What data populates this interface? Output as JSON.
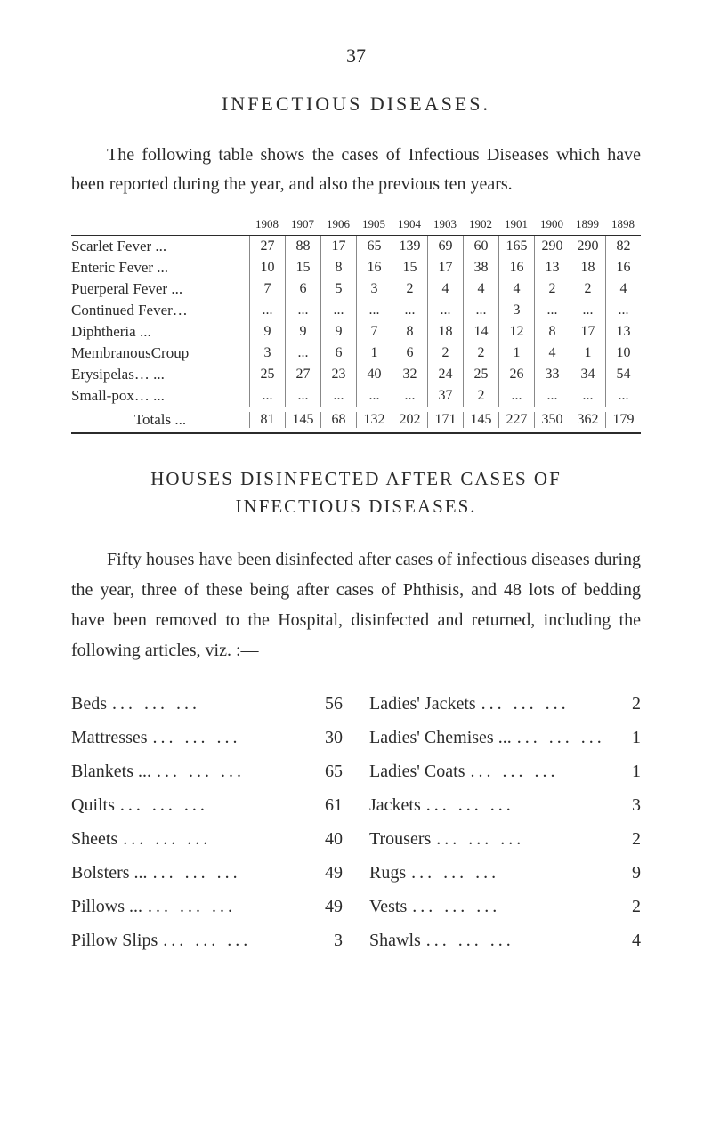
{
  "page_number": "37",
  "section_title": "INFECTIOUS DISEASES.",
  "intro": "The following table shows the cases of Infectious Diseases which have been reported during the year, and also the previous ten years.",
  "table": {
    "years": [
      "1908",
      "1907",
      "1906",
      "1905",
      "1904",
      "1903",
      "1902",
      "1901",
      "1900",
      "1899",
      "1898"
    ],
    "rows": [
      {
        "label": "Scarlet Fever    ...",
        "cells": [
          "27",
          "88",
          "17",
          "65",
          "139",
          "69",
          "60",
          "165",
          "290",
          "290",
          "82"
        ]
      },
      {
        "label": "Enteric Fever    ...",
        "cells": [
          "10",
          "15",
          "8",
          "16",
          "15",
          "17",
          "38",
          "16",
          "13",
          "18",
          "16"
        ]
      },
      {
        "label": "Puerperal Fever ...",
        "cells": [
          "7",
          "6",
          "5",
          "3",
          "2",
          "4",
          "4",
          "4",
          "2",
          "2",
          "4"
        ]
      },
      {
        "label": "Continued Fever…",
        "cells": [
          "...",
          "...",
          "...",
          "...",
          "...",
          "...",
          "...",
          "3",
          "...",
          "...",
          "..."
        ]
      },
      {
        "label": "Diphtheria          ...",
        "cells": [
          "9",
          "9",
          "9",
          "7",
          "8",
          "18",
          "14",
          "12",
          "8",
          "17",
          "13"
        ]
      },
      {
        "label": "MembranousCroup",
        "cells": [
          "3",
          "...",
          "6",
          "1",
          "6",
          "2",
          "2",
          "1",
          "4",
          "1",
          "10"
        ]
      },
      {
        "label": "Erysipelas…      ...",
        "cells": [
          "25",
          "27",
          "23",
          "40",
          "32",
          "24",
          "25",
          "26",
          "33",
          "34",
          "54"
        ]
      },
      {
        "label": "Small-pox…      ...",
        "cells": [
          "...",
          "...",
          "...",
          "...",
          "...",
          "37",
          "2",
          "...",
          "...",
          "...",
          "..."
        ]
      }
    ],
    "totals": {
      "label": "Totals       ...",
      "cells": [
        "81",
        "145",
        "68",
        "132",
        "202",
        "171",
        "145",
        "227",
        "350",
        "362",
        "179"
      ]
    }
  },
  "subsection_title_1": "HOUSES DISINFECTED AFTER CASES OF",
  "subsection_title_2": "INFECTIOUS DISEASES.",
  "body": "Fifty houses have been disinfected after cases of infectious diseases during the year, three of these being after cases of Phthisis, and 48 lots of bedding have been removed to the Hospital, disinfected and returned, including the following articles, viz. :—",
  "items_left": [
    {
      "label": "Beds",
      "count": "56"
    },
    {
      "label": "Mattresses",
      "count": "30"
    },
    {
      "label": "Blankets ...",
      "count": "65"
    },
    {
      "label": "Quilts",
      "count": "61"
    },
    {
      "label": "Sheets",
      "count": "40"
    },
    {
      "label": "Bolsters ...",
      "count": "49"
    },
    {
      "label": "Pillows ...",
      "count": "49"
    },
    {
      "label": "Pillow Slips",
      "count": "3"
    }
  ],
  "items_right": [
    {
      "label": "Ladies' Jackets",
      "count": "2"
    },
    {
      "label": "Ladies' Chemises ...",
      "count": "1"
    },
    {
      "label": "Ladies' Coats",
      "count": "1"
    },
    {
      "label": "Jackets",
      "count": "3"
    },
    {
      "label": "Trousers",
      "count": "2"
    },
    {
      "label": "Rugs",
      "count": "9"
    },
    {
      "label": "Vests",
      "count": "2"
    },
    {
      "label": "Shawls",
      "count": "4"
    }
  ],
  "dots": "... ... ..."
}
